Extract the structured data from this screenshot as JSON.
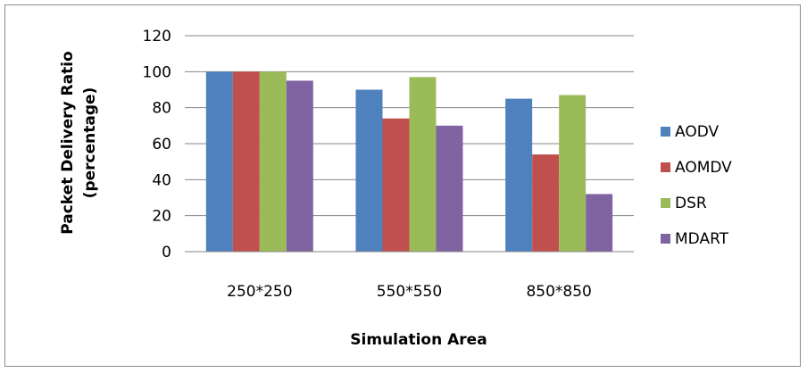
{
  "chart_data": {
    "type": "bar",
    "categories": [
      "250*250",
      "550*550",
      "850*850"
    ],
    "series": [
      {
        "name": "AODV",
        "values": [
          100,
          90,
          85
        ],
        "color": "#4F81BD"
      },
      {
        "name": "AOMDV",
        "values": [
          100,
          74,
          54
        ],
        "color": "#C0504D"
      },
      {
        "name": "DSR",
        "values": [
          100,
          97,
          87
        ],
        "color": "#9BBB59"
      },
      {
        "name": "MDART",
        "values": [
          95,
          70,
          32
        ],
        "color": "#8064A2"
      }
    ],
    "title": "",
    "xlabel": "Simulation Area",
    "ylabel_line1": "Packet Delivery Ratio",
    "ylabel_line2": "(percentage)",
    "ylim": [
      0,
      120
    ],
    "yticks": [
      0,
      20,
      40,
      60,
      80,
      100,
      120
    ],
    "grid": true,
    "legend_position": "right"
  }
}
